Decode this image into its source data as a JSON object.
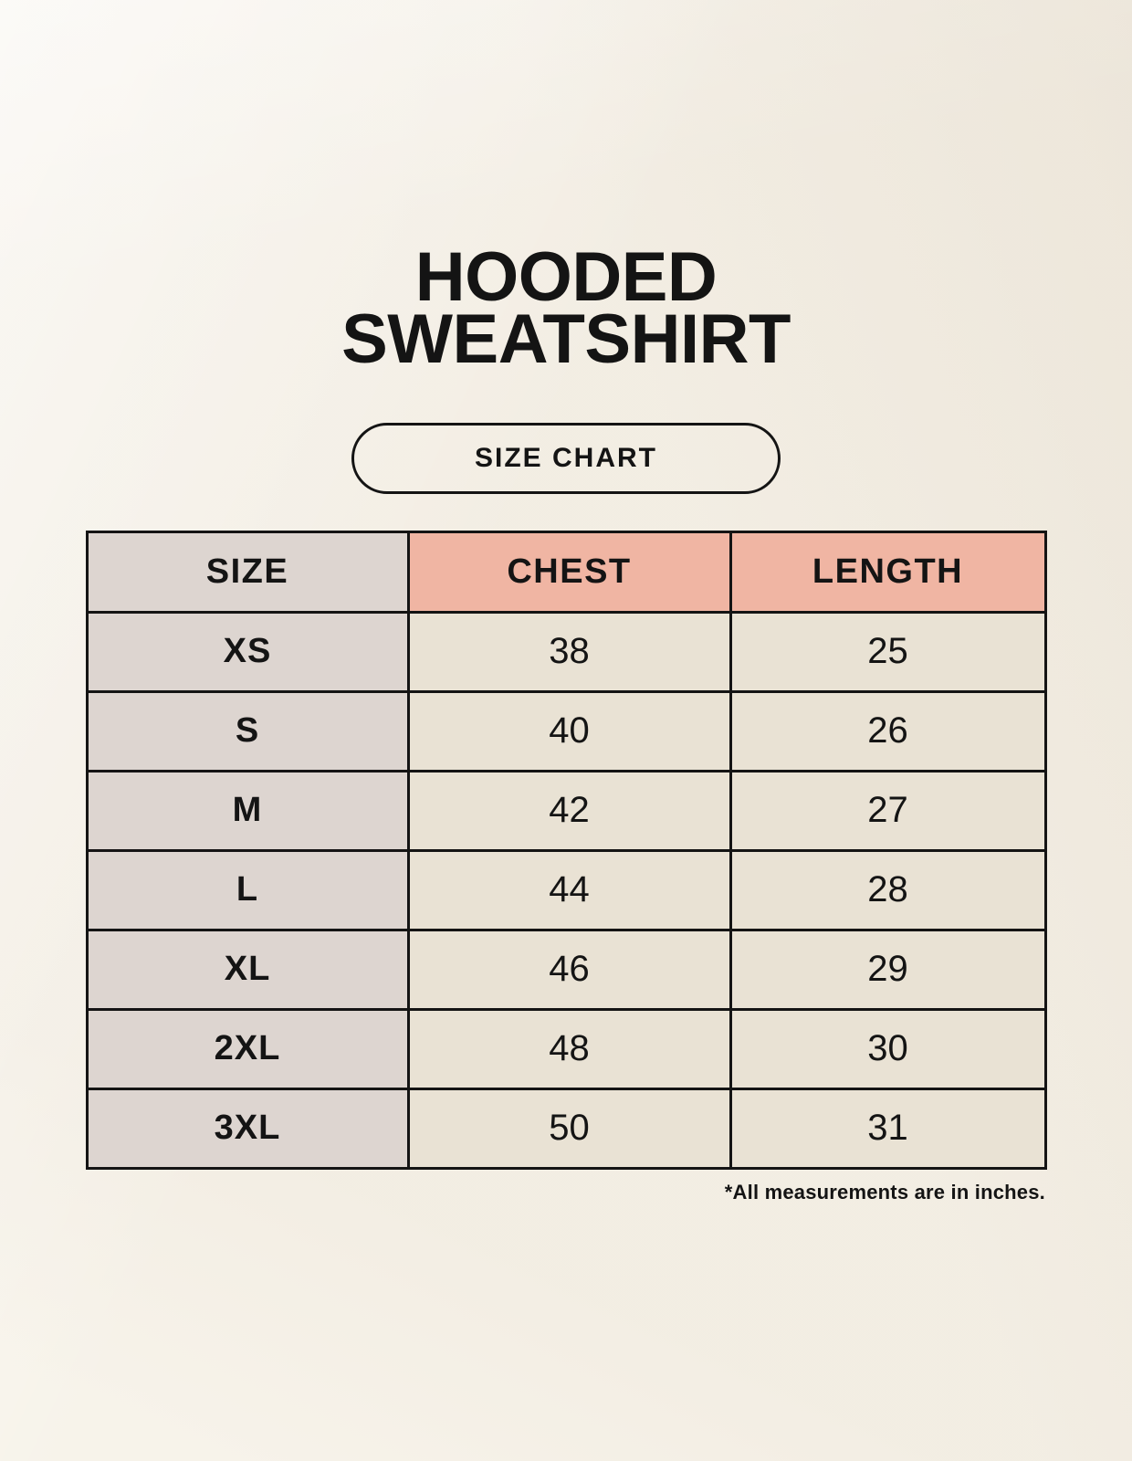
{
  "header": {
    "title_line1": "HOODED",
    "title_line2": "SWEATSHIRT",
    "size_chart_label": "SIZE CHART"
  },
  "table": {
    "columns": [
      "SIZE",
      "CHEST",
      "LENGTH"
    ],
    "rows": [
      {
        "size": "XS",
        "chest": "38",
        "length": "25"
      },
      {
        "size": "S",
        "chest": "40",
        "length": "26"
      },
      {
        "size": "M",
        "chest": "42",
        "length": "27"
      },
      {
        "size": "L",
        "chest": "44",
        "length": "28"
      },
      {
        "size": "XL",
        "chest": "46",
        "length": "29"
      },
      {
        "size": "2XL",
        "chest": "48",
        "length": "30"
      },
      {
        "size": "3XL",
        "chest": "50",
        "length": "31"
      }
    ]
  },
  "footnote": "*All measurements are in inches.",
  "colors": {
    "page_background": "#f7f3ea",
    "size_column_background": "#ddd5d0",
    "header_accent_background": "#f0b5a3",
    "data_cell_background": "#e9e2d4",
    "border": "#141414",
    "text": "#141414"
  },
  "chart_data": {
    "type": "table",
    "title": "HOODED SWEATSHIRT",
    "columns": [
      "SIZE",
      "CHEST",
      "LENGTH"
    ],
    "rows": [
      [
        "XS",
        38,
        25
      ],
      [
        "S",
        40,
        26
      ],
      [
        "M",
        42,
        27
      ],
      [
        "L",
        44,
        28
      ],
      [
        "XL",
        46,
        29
      ],
      [
        "2XL",
        48,
        30
      ],
      [
        "3XL",
        50,
        31
      ]
    ],
    "units": "inches"
  }
}
